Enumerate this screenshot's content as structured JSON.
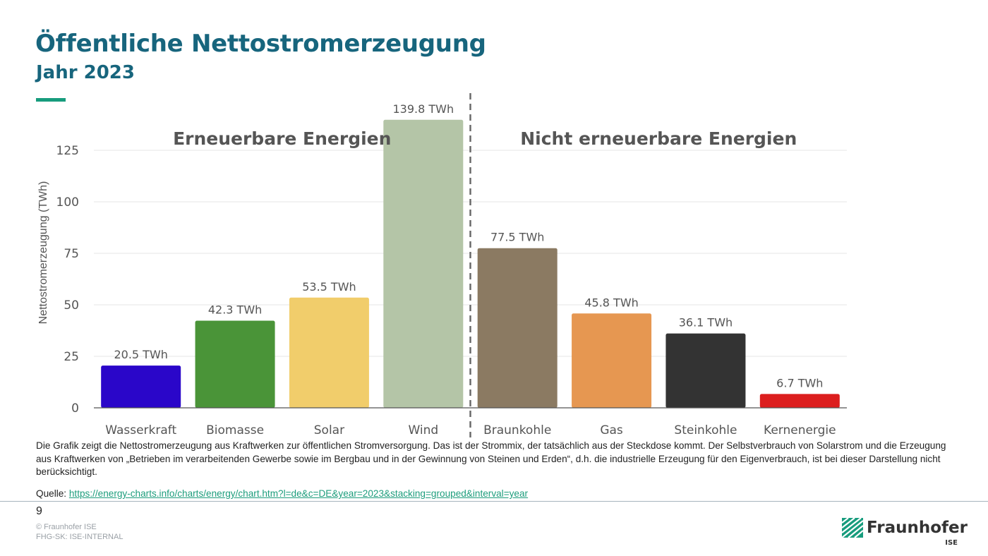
{
  "header": {
    "title": "Öffentliche Nettostromerzeugung",
    "subtitle": "Jahr 2023"
  },
  "colors": {
    "brand_blue": "#17657d",
    "brand_green": "#179c7d"
  },
  "chart_data": {
    "type": "bar",
    "categories": [
      "Wasserkraft",
      "Biomasse",
      "Solar",
      "Wind",
      "Braunkohle",
      "Gas",
      "Steinkohle",
      "Kernenergie"
    ],
    "values": [
      20.5,
      42.3,
      53.5,
      139.8,
      77.5,
      45.8,
      36.1,
      6.7
    ],
    "data_labels": [
      "20.5 TWh",
      "42.3 TWh",
      "53.5 TWh",
      "139.8 TWh",
      "77.5 TWh",
      "45.8 TWh",
      "36.1 TWh",
      "6.7 TWh"
    ],
    "colors": [
      "#2a06c9",
      "#4a9438",
      "#f1cd6b",
      "#b4c5a7",
      "#8b7a62",
      "#e69751",
      "#333333",
      "#dc1e1e"
    ],
    "ylabel": "Nettostromerzeugung (TWh)",
    "xlabel": "",
    "yticks": [
      0,
      25,
      50,
      75,
      100,
      125
    ],
    "ylim": [
      0,
      140
    ],
    "grid": true,
    "groups": [
      {
        "label": "Erneuerbare Energien",
        "categories": [
          "Wasserkraft",
          "Biomasse",
          "Solar",
          "Wind"
        ]
      },
      {
        "label": "Nicht erneuerbare Energien",
        "categories": [
          "Braunkohle",
          "Gas",
          "Steinkohle",
          "Kernenergie"
        ]
      }
    ]
  },
  "footer": {
    "description": "Die Grafik zeigt die Nettostromerzeugung aus Kraftwerken zur öffentlichen Stromversorgung. Das ist der Strommix, der tatsächlich aus der Steckdose kommt. Der Selbstverbrauch von Solarstrom und die Erzeugung aus Kraftwerken von „Betrieben im verarbeitenden Gewerbe sowie im Bergbau und in der Gewinnung von Steinen und Erden“, d.h. die industrielle Erzeugung für den Eigenverbrauch, ist bei dieser Darstellung nicht berücksichtigt.",
    "source_label": "Quelle:",
    "source_url": "https://energy-charts.info/charts/energy/chart.htm?l=de&c=DE&year=2023&stacking=grouped&interval=year",
    "page_number": "9",
    "copyright": "© Fraunhofer ISE",
    "classification": "FHG-SK: ISE-INTERNAL",
    "logo_name": "Fraunhofer",
    "logo_unit": "ISE"
  }
}
